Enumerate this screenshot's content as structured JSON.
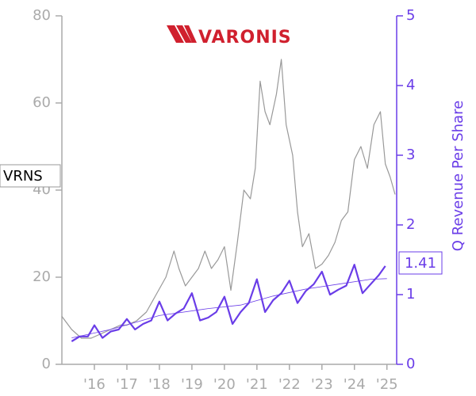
{
  "chart_data": {
    "type": "line",
    "logo": "VARONIS",
    "y2_label": "Q Revenue Per Share",
    "xlim": [
      2015,
      2025.3
    ],
    "xticks": [
      {
        "value": 2016,
        "label": "'16"
      },
      {
        "value": 2017,
        "label": "'17"
      },
      {
        "value": 2018,
        "label": "'18"
      },
      {
        "value": 2019,
        "label": "'19"
      },
      {
        "value": 2020,
        "label": "'20"
      },
      {
        "value": 2021,
        "label": "'21"
      },
      {
        "value": 2022,
        "label": "'22"
      },
      {
        "value": 2023,
        "label": "'23"
      },
      {
        "value": 2024,
        "label": "'24"
      },
      {
        "value": 2025,
        "label": "'25"
      }
    ],
    "ylim": [
      0,
      80
    ],
    "yticks": [
      0,
      20,
      40,
      60,
      80
    ],
    "y2lim": [
      0,
      5
    ],
    "y2ticks": [
      0,
      1,
      2,
      3,
      4,
      5
    ],
    "series": [
      {
        "name": "VRNS",
        "color": "#999999",
        "x": [
          2015.0,
          2015.3,
          2015.6,
          2015.9,
          2016.2,
          2016.5,
          2016.8,
          2017.0,
          2017.3,
          2017.6,
          2017.9,
          2018.2,
          2018.45,
          2018.6,
          2018.8,
          2019.0,
          2019.2,
          2019.4,
          2019.6,
          2019.8,
          2020.0,
          2020.2,
          2020.4,
          2020.6,
          2020.8,
          2020.95,
          2021.1,
          2021.25,
          2021.4,
          2021.6,
          2021.75,
          2021.9,
          2022.1,
          2022.25,
          2022.4,
          2022.6,
          2022.8,
          2023.0,
          2023.2,
          2023.4,
          2023.6,
          2023.8,
          2024.0,
          2024.2,
          2024.4,
          2024.6,
          2024.8,
          2024.95,
          2025.1,
          2025.25
        ],
        "values": [
          11,
          8,
          6,
          6,
          7,
          8,
          9,
          9,
          10,
          12,
          16,
          20,
          26,
          22,
          18,
          20,
          22,
          26,
          22,
          24,
          27,
          17,
          28,
          40,
          38,
          45,
          65,
          58,
          55,
          62,
          70,
          55,
          48,
          35,
          27,
          30,
          22,
          23,
          25,
          28,
          33,
          35,
          47,
          50,
          45,
          55,
          58,
          46,
          43,
          39
        ]
      },
      {
        "color": "#6a3de8",
        "axis": "y2",
        "x": [
          2015.3,
          2015.55,
          2015.8,
          2016.0,
          2016.25,
          2016.5,
          2016.75,
          2017.0,
          2017.25,
          2017.5,
          2017.75,
          2018.0,
          2018.25,
          2018.5,
          2018.75,
          2019.0,
          2019.25,
          2019.5,
          2019.75,
          2020.0,
          2020.25,
          2020.5,
          2020.75,
          2021.0,
          2021.25,
          2021.5,
          2021.75,
          2022.0,
          2022.25,
          2022.5,
          2022.75,
          2023.0,
          2023.25,
          2023.5,
          2023.75,
          2024.0,
          2024.25,
          2024.5,
          2024.75,
          2024.95
        ],
        "values": [
          0.33,
          0.4,
          0.4,
          0.56,
          0.38,
          0.47,
          0.5,
          0.65,
          0.5,
          0.58,
          0.63,
          0.9,
          0.63,
          0.73,
          0.8,
          1.02,
          0.63,
          0.67,
          0.75,
          0.97,
          0.58,
          0.75,
          0.88,
          1.22,
          0.75,
          0.92,
          1.02,
          1.2,
          0.88,
          1.05,
          1.15,
          1.33,
          1.0,
          1.07,
          1.13,
          1.43,
          1.02,
          1.15,
          1.28,
          1.41
        ]
      },
      {
        "color": "#6a3de8",
        "axis": "y2",
        "x": [
          2015.3,
          2016.5,
          2018.0,
          2019.5,
          2020.5,
          2021.5,
          2022.5,
          2023.5,
          2024.5,
          2025.0
        ],
        "values": [
          0.38,
          0.5,
          0.7,
          0.8,
          0.85,
          0.98,
          1.08,
          1.15,
          1.22,
          1.23
        ]
      }
    ]
  }
}
